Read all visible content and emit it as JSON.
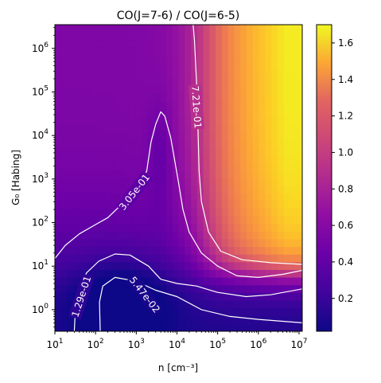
{
  "chart_data": {
    "type": "heatmap",
    "title": "CO(J=7-6) / CO(J=6-5)",
    "xlabel": "n [cm⁻³]",
    "ylabel": "G₀ [Habing]",
    "x_scale": "log",
    "y_scale": "log",
    "xlim": [
      10,
      12000000
    ],
    "ylim": [
      0.32,
      3500000
    ],
    "x_ticks": [
      {
        "base": "10",
        "exp": "1",
        "value": 10
      },
      {
        "base": "10",
        "exp": "2",
        "value": 100
      },
      {
        "base": "10",
        "exp": "3",
        "value": 1000
      },
      {
        "base": "10",
        "exp": "4",
        "value": 10000
      },
      {
        "base": "10",
        "exp": "5",
        "value": 100000
      },
      {
        "base": "10",
        "exp": "6",
        "value": 1000000
      },
      {
        "base": "10",
        "exp": "7",
        "value": 10000000
      }
    ],
    "y_ticks": [
      {
        "base": "10",
        "exp": "0",
        "value": 1
      },
      {
        "base": "10",
        "exp": "1",
        "value": 10
      },
      {
        "base": "10",
        "exp": "2",
        "value": 100
      },
      {
        "base": "10",
        "exp": "3",
        "value": 1000
      },
      {
        "base": "10",
        "exp": "4",
        "value": 10000
      },
      {
        "base": "10",
        "exp": "5",
        "value": 100000
      },
      {
        "base": "10",
        "exp": "6",
        "value": 1000000
      }
    ],
    "colormap": "plasma",
    "colorbar": {
      "min": 0.02,
      "max": 1.7,
      "ticks": [
        "0.2",
        "0.4",
        "0.6",
        "0.8",
        "1.0",
        "1.2",
        "1.4",
        "1.6"
      ]
    },
    "contours": [
      {
        "level": 0.0547,
        "label": "5.47e-02",
        "points": [
          [
            130,
            0.32
          ],
          [
            125,
            1.5
          ],
          [
            150,
            3.5
          ],
          [
            300,
            5.5
          ],
          [
            1000,
            4.5
          ],
          [
            3000,
            2.8
          ],
          [
            10000,
            2.0
          ],
          [
            40000,
            1.0
          ],
          [
            200000,
            0.7
          ],
          [
            1000000,
            0.6
          ],
          [
            12000000,
            0.5
          ]
        ]
      },
      {
        "level": 0.129,
        "label": "1.29e-01",
        "points": [
          [
            30,
            0.32
          ],
          [
            32,
            1.0
          ],
          [
            40,
            3.0
          ],
          [
            60,
            7.0
          ],
          [
            120,
            13.0
          ],
          [
            300,
            19.0
          ],
          [
            700,
            18.0
          ],
          [
            2000,
            10.0
          ],
          [
            4000,
            5.0
          ],
          [
            10000,
            4.0
          ],
          [
            30000,
            3.5
          ],
          [
            100000,
            2.5
          ],
          [
            500000,
            2.0
          ],
          [
            2000000,
            2.2
          ],
          [
            12000000,
            3.0
          ]
        ]
      },
      {
        "level": 0.305,
        "label": "3.05e-01",
        "points": [
          [
            10,
            15.0
          ],
          [
            18,
            30.0
          ],
          [
            40,
            55.0
          ],
          [
            90,
            85.0
          ],
          [
            200,
            130.0
          ],
          [
            700,
            400.0
          ],
          [
            1800,
            1500.0
          ],
          [
            2300,
            7000.0
          ],
          [
            3000,
            18000.0
          ],
          [
            4000,
            35000.0
          ],
          [
            5000,
            28000.0
          ],
          [
            7000,
            9000.0
          ],
          [
            11000,
            800.0
          ],
          [
            14000,
            200.0
          ],
          [
            20000,
            60.0
          ],
          [
            40000,
            20.0
          ],
          [
            100000,
            10.0
          ],
          [
            300000,
            6.0
          ],
          [
            1000000,
            5.5
          ],
          [
            4000000,
            6.5
          ],
          [
            12000000,
            8.0
          ]
        ]
      },
      {
        "level": 0.721,
        "label": "7.21e-01",
        "points": [
          [
            25000,
            3500000
          ],
          [
            27000,
            1500000
          ],
          [
            30000,
            200000
          ],
          [
            32000,
            40000
          ],
          [
            35000,
            1500
          ],
          [
            40000,
            300
          ],
          [
            60000,
            60
          ],
          [
            120000,
            22
          ],
          [
            400000,
            14
          ],
          [
            2000000,
            12
          ],
          [
            12000000,
            11
          ]
        ]
      }
    ]
  }
}
